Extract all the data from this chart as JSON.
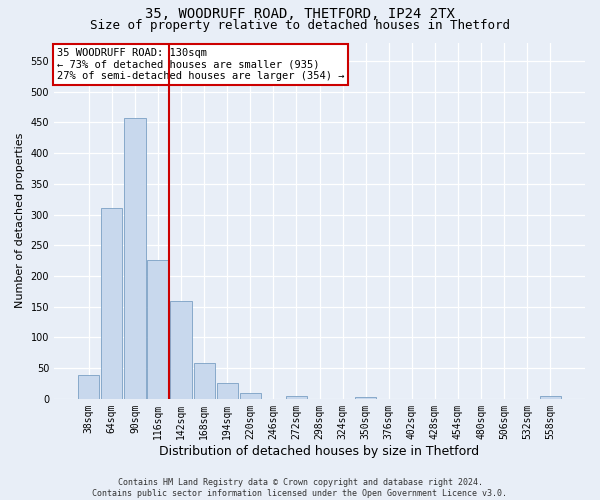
{
  "title_line1": "35, WOODRUFF ROAD, THETFORD, IP24 2TX",
  "title_line2": "Size of property relative to detached houses in Thetford",
  "xlabel": "Distribution of detached houses by size in Thetford",
  "ylabel": "Number of detached properties",
  "footnote": "Contains HM Land Registry data © Crown copyright and database right 2024.\nContains public sector information licensed under the Open Government Licence v3.0.",
  "bin_labels": [
    "38sqm",
    "64sqm",
    "90sqm",
    "116sqm",
    "142sqm",
    "168sqm",
    "194sqm",
    "220sqm",
    "246sqm",
    "272sqm",
    "298sqm",
    "324sqm",
    "350sqm",
    "376sqm",
    "402sqm",
    "428sqm",
    "454sqm",
    "480sqm",
    "506sqm",
    "532sqm",
    "558sqm"
  ],
  "bar_values": [
    38,
    311,
    457,
    226,
    160,
    58,
    25,
    10,
    0,
    5,
    0,
    0,
    3,
    0,
    0,
    0,
    0,
    0,
    0,
    0,
    4
  ],
  "bar_color": "#c8d8ed",
  "bar_edge_color": "#7aa0c4",
  "vline_color": "#cc0000",
  "annotation_text": "35 WOODRUFF ROAD: 130sqm\n← 73% of detached houses are smaller (935)\n27% of semi-detached houses are larger (354) →",
  "annotation_box_color": "white",
  "annotation_box_edge_color": "#cc0000",
  "ylim": [
    0,
    580
  ],
  "yticks": [
    0,
    50,
    100,
    150,
    200,
    250,
    300,
    350,
    400,
    450,
    500,
    550
  ],
  "background_color": "#e8eef7",
  "plot_bg_color": "#e8eef7",
  "grid_color": "#ffffff",
  "title1_fontsize": 10,
  "title2_fontsize": 9,
  "xlabel_fontsize": 9,
  "ylabel_fontsize": 8,
  "tick_fontsize": 7,
  "annotation_fontsize": 7.5,
  "footnote_fontsize": 6
}
